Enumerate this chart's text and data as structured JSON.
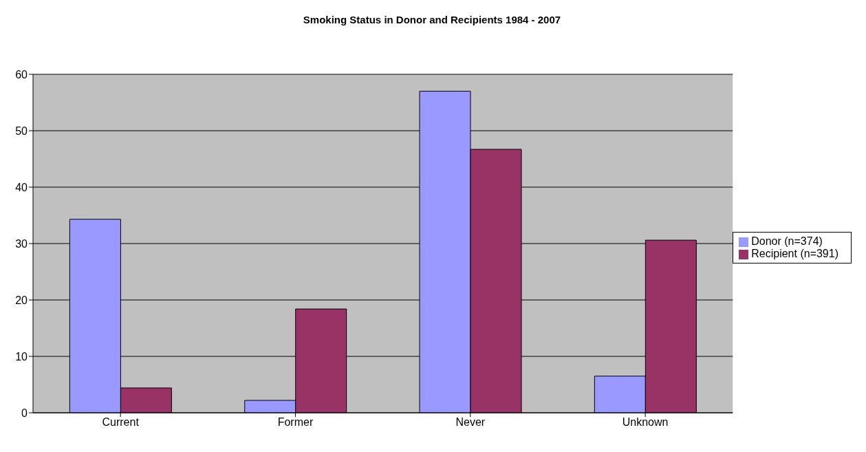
{
  "chart_data": {
    "type": "bar",
    "title": "Smoking Status in Donor and Recipients 1984 - 2007",
    "categories": [
      "Current",
      "Former",
      "Never",
      "Unknown"
    ],
    "series": [
      {
        "name": "Donor (n=374)",
        "color": "#9999ff",
        "values": [
          34.3,
          2.2,
          57.0,
          6.5
        ]
      },
      {
        "name": "Recipient (n=391)",
        "color": "#993366",
        "values": [
          4.4,
          18.4,
          46.7,
          30.6
        ]
      }
    ],
    "ylim": [
      0,
      60
    ],
    "yticks": [
      0,
      10,
      20,
      30,
      40,
      50,
      60
    ],
    "grid": "y",
    "legend": "right"
  }
}
